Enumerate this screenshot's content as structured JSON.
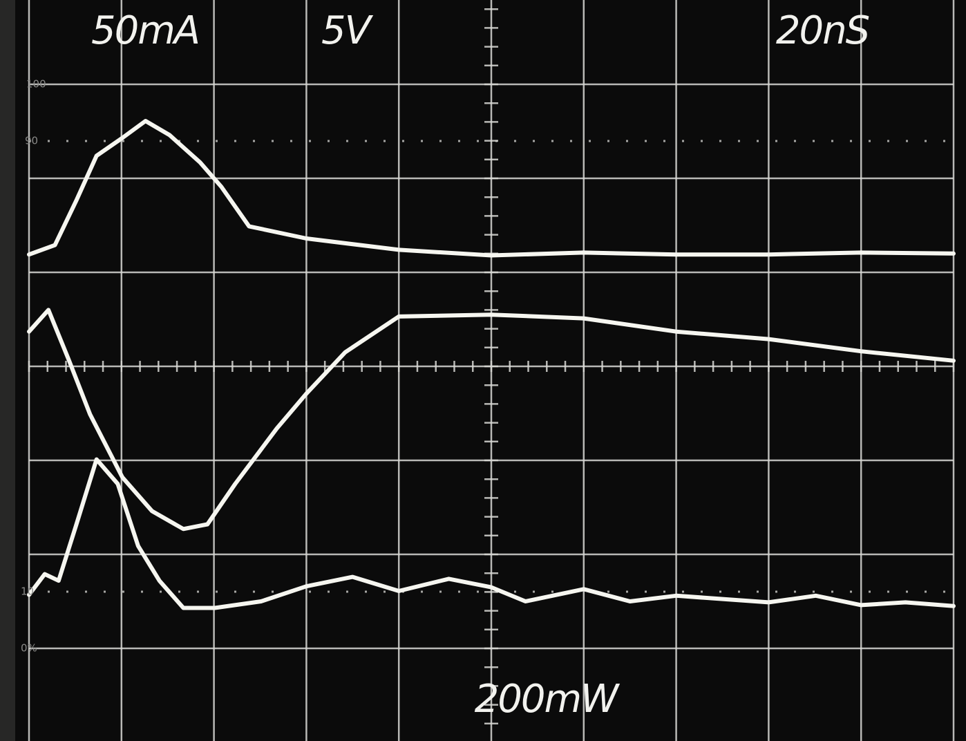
{
  "chart_data": {
    "type": "line",
    "annotations": [
      "50mA",
      "5V",
      "20nS",
      "200mW"
    ],
    "graticule_labels": [
      "100",
      "90",
      "10",
      "0%"
    ],
    "xlim": [
      0,
      10
    ],
    "ylim": [
      0,
      8
    ],
    "series": [
      {
        "color": "#f6f6f0",
        "x": [
          0,
          0.28,
          0.51,
          0.73,
          1.01,
          1.26,
          1.52,
          1.85,
          2.08,
          2.38,
          3.0,
          4.0,
          5.0,
          6.0,
          7.0,
          8.0,
          9.0,
          10.0
        ],
        "values": [
          5.19,
          5.29,
          5.76,
          6.24,
          6.43,
          6.61,
          6.46,
          6.17,
          5.91,
          5.49,
          5.36,
          5.24,
          5.18,
          5.21,
          5.19,
          5.19,
          5.21,
          5.2
        ]
      },
      {
        "color": "#f6f6f0",
        "x": [
          0,
          0.21,
          0.43,
          0.66,
          1.01,
          1.33,
          1.67,
          1.93,
          2.23,
          2.68,
          3.0,
          3.42,
          4.0,
          5.0,
          6.0,
          7.0,
          8.0,
          9.0,
          10.0
        ],
        "values": [
          4.37,
          4.6,
          4.07,
          3.49,
          2.82,
          2.46,
          2.27,
          2.32,
          2.75,
          3.34,
          3.71,
          4.15,
          4.53,
          4.55,
          4.51,
          4.37,
          4.29,
          4.16,
          4.06
        ]
      },
      {
        "color": "#f6f6f0",
        "x": [
          0,
          0.17,
          0.32,
          0.51,
          0.73,
          0.96,
          1.18,
          1.41,
          1.67,
          2.01,
          2.51,
          3.0,
          3.5,
          4.0,
          4.54,
          5.0,
          5.37,
          6.0,
          6.5,
          7.0,
          8.0,
          8.51,
          9.0,
          9.48,
          10.0
        ],
        "values": [
          1.57,
          1.79,
          1.72,
          2.31,
          3.01,
          2.75,
          2.09,
          1.72,
          1.43,
          1.43,
          1.5,
          1.66,
          1.76,
          1.61,
          1.74,
          1.65,
          1.5,
          1.63,
          1.5,
          1.56,
          1.49,
          1.56,
          1.46,
          1.49,
          1.45
        ]
      }
    ]
  }
}
